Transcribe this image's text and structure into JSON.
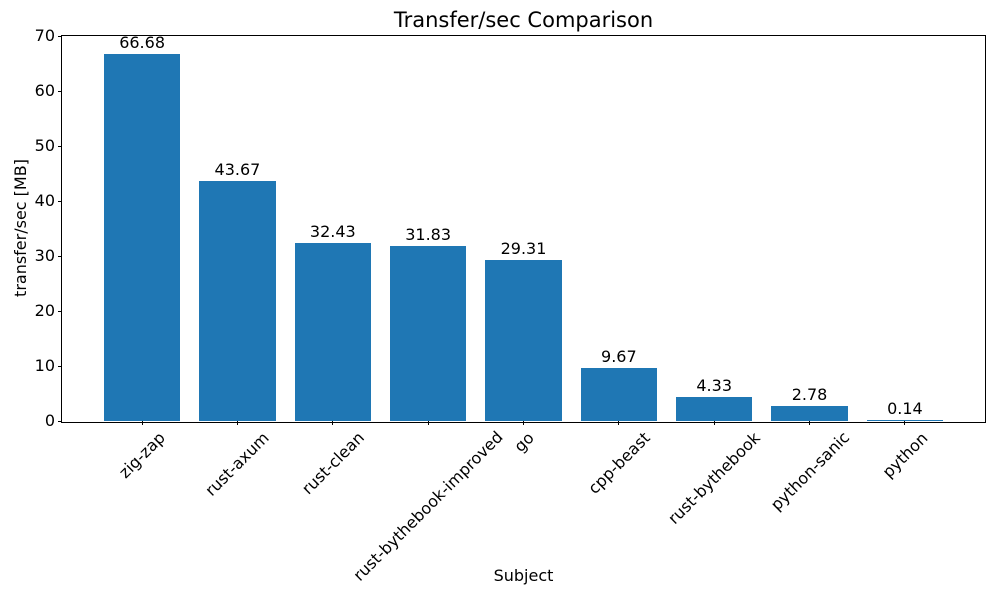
{
  "chart_data": {
    "type": "bar",
    "title": "Transfer/sec Comparison",
    "xlabel": "Subject",
    "ylabel": "transfer/sec [MB]",
    "categories": [
      "zig-zap",
      "rust-axum",
      "rust-clean",
      "rust-bythebook-improved",
      "go",
      "cpp-beast",
      "rust-bythebook",
      "python-sanic",
      "python"
    ],
    "values": [
      66.68,
      43.67,
      32.43,
      31.83,
      29.31,
      9.67,
      4.33,
      2.78,
      0.14
    ],
    "bar_labels": [
      "66.68",
      "43.67",
      "32.43",
      "31.83",
      "29.31",
      "9.67",
      "4.33",
      "2.78",
      "0.14"
    ],
    "ylim": [
      0,
      70
    ],
    "yticks": [
      0,
      10,
      20,
      30,
      40,
      50,
      60,
      70
    ],
    "bar_color": "#1f77b4",
    "grid": false,
    "legend": null,
    "xtick_rotation": 45
  }
}
